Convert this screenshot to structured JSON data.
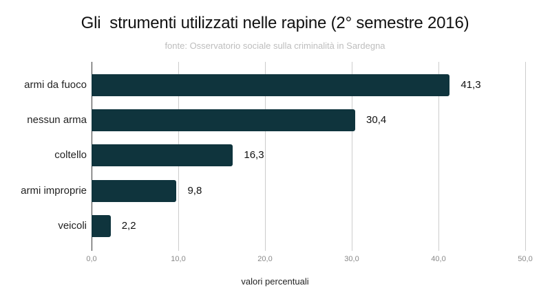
{
  "title": "Gli  strumenti utilizzati nelle rapine (2° semestre 2016)",
  "subtitle": "fonte: Osservatorio sociale sulla criminalità in Sardegna",
  "bars": [
    {
      "label": "armi da fuoco",
      "value": 41.3,
      "display": "41,3"
    },
    {
      "label": "nessun arma",
      "value": 30.4,
      "display": "30,4"
    },
    {
      "label": "coltello",
      "value": 16.3,
      "display": "16,3"
    },
    {
      "label": "armi improprie",
      "value": 9.8,
      "display": "9,8"
    },
    {
      "label": "veicoli",
      "value": 2.2,
      "display": "2,2"
    }
  ],
  "ticks": [
    "0,0",
    "10,0",
    "20,0",
    "30,0",
    "40,0",
    "50,0"
  ],
  "xlabel": "valori percentuali",
  "colors": {
    "bar": "#0f343d",
    "grid": "#cccccc"
  },
  "chart_data": {
    "type": "bar",
    "orientation": "horizontal",
    "title": "Gli strumenti utilizzati nelle rapine (2° semestre 2016)",
    "subtitle": "fonte: Osservatorio sociale sulla criminalità in Sardegna",
    "categories": [
      "armi da fuoco",
      "nessun arma",
      "coltello",
      "armi improprie",
      "veicoli"
    ],
    "values": [
      41.3,
      30.4,
      16.3,
      9.8,
      2.2
    ],
    "xlabel": "valori percentuali",
    "ylabel": "",
    "xlim": [
      0,
      50
    ],
    "xticks": [
      0,
      10,
      20,
      30,
      40,
      50
    ],
    "grid": true,
    "legend": false,
    "data_labels": true
  }
}
